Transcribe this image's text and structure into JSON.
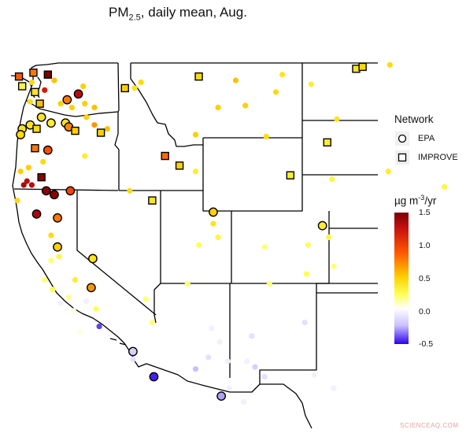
{
  "title": {
    "prefix": "PM",
    "sub": "2.5",
    "suffix": ", daily mean, Aug."
  },
  "legend": {
    "network_title": "Network",
    "networks": [
      {
        "label": "EPA",
        "shape": "circle"
      },
      {
        "label": "IMPROVE",
        "shape": "square"
      }
    ],
    "color_title_prefix": "µg m",
    "color_title_sup": "-3",
    "color_title_suffix": "/yr",
    "ticks": [
      "1.5",
      "1.0",
      "0.5",
      "0.0",
      "-0.5"
    ]
  },
  "watermark": "SCIENCEAQ.COM",
  "chart_data": {
    "type": "scatter",
    "color_range": [
      -0.5,
      1.5
    ],
    "sites": [
      {
        "lon": -124.0,
        "lat": 48.3,
        "value": 0.9,
        "network": "IMPROVE",
        "marked": true
      },
      {
        "lon": -123.1,
        "lat": 48.5,
        "value": 0.8,
        "network": "IMPROVE",
        "marked": true
      },
      {
        "lon": -122.2,
        "lat": 48.4,
        "value": 1.5,
        "network": "IMPROVE",
        "marked": true
      },
      {
        "lon": -121.8,
        "lat": 48.1,
        "value": 0.55,
        "network": "EPA",
        "marked": false
      },
      {
        "lon": -123.2,
        "lat": 48.0,
        "value": 0.45,
        "network": "EPA",
        "marked": false
      },
      {
        "lon": -123.8,
        "lat": 47.8,
        "value": 0.3,
        "network": "IMPROVE",
        "marked": true
      },
      {
        "lon": -122.4,
        "lat": 47.6,
        "value": 1.2,
        "network": "EPA",
        "marked": false
      },
      {
        "lon": -123.0,
        "lat": 47.5,
        "value": 0.4,
        "network": "IMPROVE",
        "marked": true
      },
      {
        "lon": -120.3,
        "lat": 47.4,
        "value": 1.3,
        "network": "EPA",
        "marked": true
      },
      {
        "lon": -120.0,
        "lat": 47.8,
        "value": 0.5,
        "network": "EPA",
        "marked": false
      },
      {
        "lon": -121.0,
        "lat": 47.1,
        "value": 0.8,
        "network": "EPA",
        "marked": true
      },
      {
        "lon": -123.3,
        "lat": 47.0,
        "value": 0.45,
        "network": "EPA",
        "marked": false
      },
      {
        "lon": -122.7,
        "lat": 46.9,
        "value": 0.55,
        "network": "IMPROVE",
        "marked": true
      },
      {
        "lon": -121.4,
        "lat": 46.9,
        "value": 0.5,
        "network": "EPA",
        "marked": false
      },
      {
        "lon": -120.7,
        "lat": 46.7,
        "value": 0.5,
        "network": "EPA",
        "marked": false
      },
      {
        "lon": -119.9,
        "lat": 46.9,
        "value": 0.5,
        "network": "EPA",
        "marked": false
      },
      {
        "lon": -119.3,
        "lat": 46.7,
        "value": 0.55,
        "network": "EPA",
        "marked": false
      },
      {
        "lon": -119.8,
        "lat": 46.2,
        "value": 0.5,
        "network": "EPA",
        "marked": false
      },
      {
        "lon": -117.4,
        "lat": 47.7,
        "value": 0.5,
        "network": "IMPROVE",
        "marked": true
      },
      {
        "lon": -116.4,
        "lat": 48.0,
        "value": 0.45,
        "network": "EPA",
        "marked": false
      },
      {
        "lon": -116.8,
        "lat": 47.7,
        "value": 0.4,
        "network": "EPA",
        "marked": false
      },
      {
        "lon": -122.6,
        "lat": 46.2,
        "value": 0.4,
        "network": "EPA",
        "marked": true
      },
      {
        "lon": -122.0,
        "lat": 45.9,
        "value": 0.35,
        "network": "EPA",
        "marked": true
      },
      {
        "lon": -121.1,
        "lat": 45.9,
        "value": 0.4,
        "network": "EPA",
        "marked": true
      },
      {
        "lon": -120.9,
        "lat": 45.7,
        "value": 0.75,
        "network": "EPA",
        "marked": true
      },
      {
        "lon": -120.5,
        "lat": 45.5,
        "value": 0.5,
        "network": "IMPROVE",
        "marked": true
      },
      {
        "lon": -123.3,
        "lat": 45.8,
        "value": 0.4,
        "network": "EPA",
        "marked": true
      },
      {
        "lon": -123.8,
        "lat": 45.6,
        "value": 0.4,
        "network": "EPA",
        "marked": true
      },
      {
        "lon": -122.9,
        "lat": 45.6,
        "value": 0.45,
        "network": "IMPROVE",
        "marked": true
      },
      {
        "lon": -123.9,
        "lat": 45.3,
        "value": 0.45,
        "network": "EPA",
        "marked": true
      },
      {
        "lon": -118.5,
        "lat": 45.6,
        "value": 0.55,
        "network": "EPA",
        "marked": false
      },
      {
        "lon": -119.3,
        "lat": 45.8,
        "value": 0.7,
        "network": "EPA",
        "marked": false
      },
      {
        "lon": -118.9,
        "lat": 45.4,
        "value": 0.5,
        "network": "IMPROVE",
        "marked": true
      },
      {
        "lon": -123.0,
        "lat": 44.6,
        "value": 0.8,
        "network": "IMPROVE",
        "marked": true
      },
      {
        "lon": -122.2,
        "lat": 44.5,
        "value": 0.95,
        "network": "EPA",
        "marked": true
      },
      {
        "lon": -119.9,
        "lat": 44.2,
        "value": 0.35,
        "network": "EPA",
        "marked": false
      },
      {
        "lon": -123.4,
        "lat": 43.6,
        "value": 0.5,
        "network": "EPA",
        "marked": false
      },
      {
        "lon": -122.5,
        "lat": 43.9,
        "value": 0.45,
        "network": "EPA",
        "marked": false
      },
      {
        "lon": -123.9,
        "lat": 43.4,
        "value": 0.5,
        "network": "EPA",
        "marked": false
      },
      {
        "lon": -122.6,
        "lat": 43.1,
        "value": 1.45,
        "network": "IMPROVE",
        "marked": true
      },
      {
        "lon": -123.5,
        "lat": 42.9,
        "value": 1.3,
        "network": "EPA",
        "marked": false
      },
      {
        "lon": -123.7,
        "lat": 42.7,
        "value": 1.35,
        "network": "EPA",
        "marked": false
      },
      {
        "lon": -123.2,
        "lat": 42.7,
        "value": 1.3,
        "network": "EPA",
        "marked": false
      },
      {
        "lon": -122.3,
        "lat": 42.4,
        "value": 1.45,
        "network": "EPA",
        "marked": true
      },
      {
        "lon": -121.8,
        "lat": 42.2,
        "value": 1.45,
        "network": "EPA",
        "marked": true
      },
      {
        "lon": -120.8,
        "lat": 42.4,
        "value": 1.0,
        "network": "EPA",
        "marked": true
      },
      {
        "lon": -124.1,
        "lat": 41.9,
        "value": 0.45,
        "network": "EPA",
        "marked": false
      },
      {
        "lon": -122.9,
        "lat": 41.2,
        "value": 1.35,
        "network": "EPA",
        "marked": true
      },
      {
        "lon": -121.6,
        "lat": 41.0,
        "value": 0.8,
        "network": "EPA",
        "marked": true
      },
      {
        "lon": -122.0,
        "lat": 40.1,
        "value": 0.45,
        "network": "EPA",
        "marked": false
      },
      {
        "lon": -121.6,
        "lat": 39.5,
        "value": 0.5,
        "network": "EPA",
        "marked": true
      },
      {
        "lon": -121.5,
        "lat": 39.0,
        "value": 0.3,
        "network": "EPA",
        "marked": false
      },
      {
        "lon": -122.0,
        "lat": 38.8,
        "value": 0.2,
        "network": "EPA",
        "marked": false
      },
      {
        "lon": -122.4,
        "lat": 37.8,
        "value": 0.2,
        "network": "EPA",
        "marked": false
      },
      {
        "lon": -121.9,
        "lat": 37.3,
        "value": 0.25,
        "network": "EPA",
        "marked": false
      },
      {
        "lon": -119.4,
        "lat": 38.9,
        "value": 0.4,
        "network": "EPA",
        "marked": true
      },
      {
        "lon": -120.5,
        "lat": 37.8,
        "value": 0.35,
        "network": "EPA",
        "marked": false
      },
      {
        "lon": -120.9,
        "lat": 36.9,
        "value": 0.15,
        "network": "EPA",
        "marked": false
      },
      {
        "lon": -119.5,
        "lat": 37.4,
        "value": 0.7,
        "network": "EPA",
        "marked": true
      },
      {
        "lon": -121.4,
        "lat": 36.6,
        "value": -0.05,
        "network": "EPA",
        "marked": false
      },
      {
        "lon": -120.6,
        "lat": 36.2,
        "value": 0.05,
        "network": "EPA",
        "marked": false
      },
      {
        "lon": -119.8,
        "lat": 36.7,
        "value": -0.05,
        "network": "EPA",
        "marked": false
      },
      {
        "lon": -119.2,
        "lat": 36.3,
        "value": 0.25,
        "network": "EPA",
        "marked": false
      },
      {
        "lon": -119.0,
        "lat": 35.4,
        "value": -0.4,
        "network": "EPA",
        "marked": false
      },
      {
        "lon": -120.2,
        "lat": 35.1,
        "value": 0.05,
        "network": "EPA",
        "marked": false
      },
      {
        "lon": -116.9,
        "lat": 34.1,
        "value": -0.15,
        "network": "EPA",
        "marked": true
      },
      {
        "lon": -116.9,
        "lat": 33.7,
        "value": -0.1,
        "network": "EPA",
        "marked": false
      },
      {
        "lon": -115.6,
        "lat": 32.8,
        "value": -0.45,
        "network": "EPA",
        "marked": true
      },
      {
        "lon": -117.1,
        "lat": 32.7,
        "value": 0.0,
        "network": "EPA",
        "marked": false
      },
      {
        "lon": -115.7,
        "lat": 35.6,
        "value": 0.2,
        "network": "EPA",
        "marked": false
      },
      {
        "lon": -116.1,
        "lat": 36.8,
        "value": 0.2,
        "network": "EPA",
        "marked": false
      },
      {
        "lon": -112.8,
        "lat": 48.3,
        "value": 0.45,
        "network": "IMPROVE",
        "marked": true
      },
      {
        "lon": -110.5,
        "lat": 48.1,
        "value": 0.55,
        "network": "EPA",
        "marked": false
      },
      {
        "lon": -109.9,
        "lat": 46.8,
        "value": 0.5,
        "network": "EPA",
        "marked": false
      },
      {
        "lon": -107.6,
        "lat": 48.4,
        "value": 0.4,
        "network": "EPA",
        "marked": false
      },
      {
        "lon": -108.0,
        "lat": 47.5,
        "value": 0.45,
        "network": "EPA",
        "marked": false
      },
      {
        "lon": -105.8,
        "lat": 47.9,
        "value": 0.35,
        "network": "EPA",
        "marked": false
      },
      {
        "lon": -103.0,
        "lat": 48.7,
        "value": 0.4,
        "network": "IMPROVE",
        "marked": true
      },
      {
        "lon": -102.6,
        "lat": 48.8,
        "value": 0.45,
        "network": "IMPROVE",
        "marked": true
      },
      {
        "lon": -100.9,
        "lat": 48.9,
        "value": 0.45,
        "network": "EPA",
        "marked": false
      },
      {
        "lon": -111.6,
        "lat": 46.7,
        "value": 0.5,
        "network": "EPA",
        "marked": false
      },
      {
        "lon": -113.0,
        "lat": 45.3,
        "value": 0.5,
        "network": "EPA",
        "marked": false
      },
      {
        "lon": -104.2,
        "lat": 46.1,
        "value": 0.4,
        "network": "EPA",
        "marked": false
      },
      {
        "lon": -104.8,
        "lat": 44.9,
        "value": 0.35,
        "network": "IMPROVE",
        "marked": true
      },
      {
        "lon": -108.6,
        "lat": 45.2,
        "value": 0.45,
        "network": "EPA",
        "marked": false
      },
      {
        "lon": -114.9,
        "lat": 44.2,
        "value": 0.85,
        "network": "IMPROVE",
        "marked": true
      },
      {
        "lon": -114.0,
        "lat": 43.7,
        "value": 0.5,
        "network": "IMPROVE",
        "marked": true
      },
      {
        "lon": -113.0,
        "lat": 43.4,
        "value": 0.35,
        "network": "EPA",
        "marked": false
      },
      {
        "lon": -107.1,
        "lat": 43.2,
        "value": 0.35,
        "network": "IMPROVE",
        "marked": true
      },
      {
        "lon": -104.5,
        "lat": 43.0,
        "value": 0.3,
        "network": "EPA",
        "marked": false
      },
      {
        "lon": -101.0,
        "lat": 43.4,
        "value": 0.35,
        "network": "EPA",
        "marked": false
      },
      {
        "lon": -97.5,
        "lat": 42.6,
        "value": 0.3,
        "network": "EPA",
        "marked": false
      },
      {
        "lon": -115.7,
        "lat": 41.9,
        "value": 0.4,
        "network": "IMPROVE",
        "marked": true
      },
      {
        "lon": -117.1,
        "lat": 42.4,
        "value": 0.45,
        "network": "EPA",
        "marked": false
      },
      {
        "lon": -111.9,
        "lat": 41.3,
        "value": 0.5,
        "network": "EPA",
        "marked": true
      },
      {
        "lon": -111.9,
        "lat": 40.7,
        "value": 0.4,
        "network": "EPA",
        "marked": false
      },
      {
        "lon": -111.6,
        "lat": 40.0,
        "value": 0.3,
        "network": "EPA",
        "marked": false
      },
      {
        "lon": -112.8,
        "lat": 39.6,
        "value": 0.25,
        "network": "EPA",
        "marked": false
      },
      {
        "lon": -105.1,
        "lat": 40.6,
        "value": 0.35,
        "network": "EPA",
        "marked": true
      },
      {
        "lon": -104.7,
        "lat": 40.0,
        "value": 0.3,
        "network": "EPA",
        "marked": false
      },
      {
        "lon": -108.7,
        "lat": 39.5,
        "value": 0.2,
        "network": "EPA",
        "marked": false
      },
      {
        "lon": -106.0,
        "lat": 39.6,
        "value": 0.25,
        "network": "EPA",
        "marked": false
      },
      {
        "lon": -104.4,
        "lat": 38.5,
        "value": 0.2,
        "network": "EPA",
        "marked": false
      },
      {
        "lon": -106.1,
        "lat": 38.1,
        "value": 0.25,
        "network": "EPA",
        "marked": false
      },
      {
        "lon": -108.4,
        "lat": 37.6,
        "value": 0.2,
        "network": "EPA",
        "marked": false
      },
      {
        "lon": -113.5,
        "lat": 37.6,
        "value": 0.2,
        "network": "EPA",
        "marked": false
      },
      {
        "lon": -111.4,
        "lat": 36.9,
        "value": 0.0,
        "network": "EPA",
        "marked": false
      },
      {
        "lon": -109.7,
        "lat": 37.1,
        "value": 0.0,
        "network": "EPA",
        "marked": false
      },
      {
        "lon": -112.0,
        "lat": 35.3,
        "value": -0.05,
        "network": "EPA",
        "marked": false
      },
      {
        "lon": -111.5,
        "lat": 34.6,
        "value": -0.05,
        "network": "EPA",
        "marked": false
      },
      {
        "lon": -109.5,
        "lat": 34.9,
        "value": -0.1,
        "network": "EPA",
        "marked": false
      },
      {
        "lon": -112.2,
        "lat": 33.8,
        "value": -0.1,
        "network": "EPA",
        "marked": false
      },
      {
        "lon": -113.0,
        "lat": 33.2,
        "value": -0.2,
        "network": "EPA",
        "marked": false
      },
      {
        "lon": -111.0,
        "lat": 33.6,
        "value": -0.05,
        "network": "EPA",
        "marked": false
      },
      {
        "lon": -109.8,
        "lat": 33.6,
        "value": -0.05,
        "network": "EPA",
        "marked": false
      },
      {
        "lon": -110.9,
        "lat": 32.2,
        "value": -0.05,
        "network": "EPA",
        "marked": false
      },
      {
        "lon": -111.4,
        "lat": 31.8,
        "value": -0.25,
        "network": "EPA",
        "marked": true
      },
      {
        "lon": -109.3,
        "lat": 33.3,
        "value": -0.15,
        "network": "EPA",
        "marked": false
      },
      {
        "lon": -108.7,
        "lat": 32.8,
        "value": -0.1,
        "network": "EPA",
        "marked": false
      },
      {
        "lon": -110.0,
        "lat": 31.5,
        "value": -0.05,
        "network": "EPA",
        "marked": false
      },
      {
        "lon": -106.7,
        "lat": 35.9,
        "value": 0.0,
        "network": "EPA",
        "marked": false
      },
      {
        "lon": -103.4,
        "lat": 34.9,
        "value": 0.0,
        "network": "EPA",
        "marked": false
      },
      {
        "lon": -104.4,
        "lat": 32.2,
        "value": -0.05,
        "network": "EPA",
        "marked": false
      },
      {
        "lon": -105.6,
        "lat": 32.9,
        "value": -0.05,
        "network": "EPA",
        "marked": false
      },
      {
        "lon": -102.6,
        "lat": 36.5,
        "value": 0.0,
        "network": "EPA",
        "marked": false
      },
      {
        "lon": -106.2,
        "lat": 35.6,
        "value": -0.1,
        "network": "EPA",
        "marked": false
      }
    ]
  }
}
